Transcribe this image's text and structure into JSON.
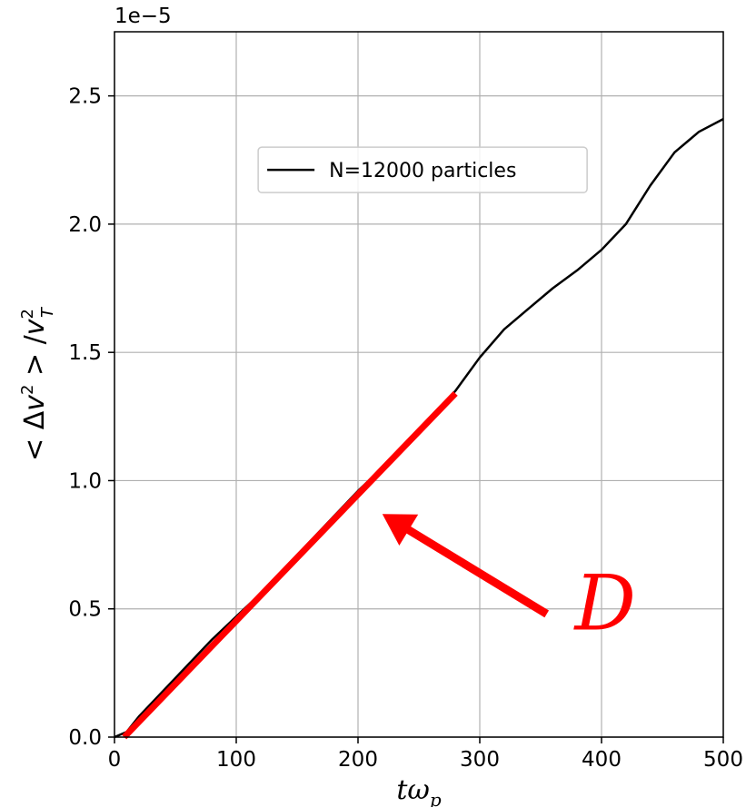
{
  "chart_data": {
    "type": "line",
    "title": "",
    "xlabel": "tω_p",
    "ylabel": "< Δv² > / v_T²",
    "xlim": [
      0,
      500
    ],
    "ylim": [
      0,
      2.75
    ],
    "y_scale_label": "1e−5",
    "x_ticks": [
      0,
      100,
      200,
      300,
      400,
      500
    ],
    "x_tick_labels": [
      "0",
      "100",
      "200",
      "300",
      "400",
      "500"
    ],
    "y_ticks": [
      0.0,
      0.5,
      1.0,
      1.5,
      2.0,
      2.5
    ],
    "y_tick_labels": [
      "0.0",
      "0.5",
      "1.0",
      "1.5",
      "2.0",
      "2.5"
    ],
    "grid": true,
    "legend_position": "top-center",
    "series": [
      {
        "name": "N=12000 particles",
        "color": "#000000",
        "x": [
          0,
          10,
          20,
          40,
          60,
          80,
          100,
          120,
          140,
          160,
          180,
          200,
          220,
          240,
          260,
          280,
          300,
          320,
          340,
          360,
          380,
          400,
          420,
          440,
          460,
          480,
          500
        ],
        "y": [
          0.0,
          0.02,
          0.08,
          0.18,
          0.28,
          0.38,
          0.47,
          0.56,
          0.66,
          0.76,
          0.86,
          0.96,
          1.05,
          1.14,
          1.24,
          1.35,
          1.48,
          1.59,
          1.67,
          1.75,
          1.82,
          1.9,
          2.0,
          2.15,
          2.28,
          2.36,
          2.41
        ]
      }
    ],
    "fit_line": {
      "color": "#ff0000",
      "x": [
        8,
        280
      ],
      "y": [
        0.0,
        1.34
      ]
    },
    "annotation": {
      "text": "D",
      "color": "#ff0000",
      "arrow_target": [
        220,
        0.87
      ],
      "arrow_tail": [
        355,
        0.48
      ]
    }
  }
}
